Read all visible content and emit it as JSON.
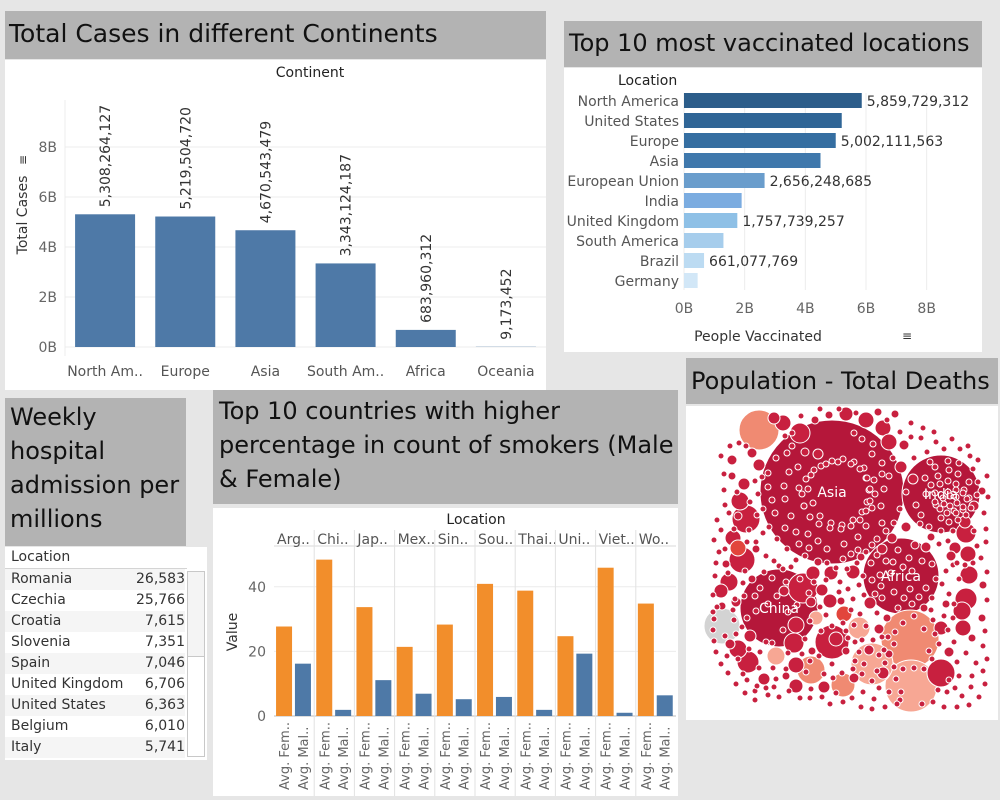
{
  "titles": {
    "cases": "Total Cases in different Continents",
    "vacc": "Top 10 most vaccinated locations",
    "deaths": "Population - Total Deaths",
    "hosp": [
      "Weekly",
      "hospital",
      "admission per",
      "millions"
    ],
    "smokers": [
      "Top 10 countries with higher",
      "percentage in count of smokers (Male",
      "& Female)"
    ]
  },
  "colors": {
    "bar_blue": "#4e79a7",
    "bar_orange": "#f28e2b",
    "title_bg": "#b3b3b3",
    "vacc_scale": [
      "#2c5d8a",
      "#2f6596",
      "#356ea1",
      "#3f78ac",
      "#6a9dcc",
      "#7bace0",
      "#8ec0e6",
      "#a6cdec",
      "#bcdbf2",
      "#d2e7f7"
    ]
  },
  "chart_data": [
    {
      "type": "bar",
      "title": "Total Cases in different Continents",
      "header": "Continent",
      "ylabel": "Total Cases",
      "categories": [
        "North Am..",
        "Europe",
        "Asia",
        "South Am..",
        "Africa",
        "Oceania"
      ],
      "values": [
        5308264127,
        5219504720,
        4670543479,
        3343124187,
        683960312,
        9173452
      ],
      "value_labels": [
        "5,308,264,127",
        "5,219,504,720",
        "4,670,543,479",
        "3,343,124,187",
        "683,960,312",
        "9,173,452"
      ],
      "yticks": [
        "0B",
        "2B",
        "4B",
        "6B",
        "8B"
      ],
      "ylim": [
        0,
        9000000000
      ],
      "grid": true
    },
    {
      "type": "bar",
      "orientation": "horizontal",
      "title": "Top 10 most vaccinated locations",
      "header": "Location",
      "xlabel": "People Vaccinated",
      "categories": [
        "North America",
        "United States",
        "Europe",
        "Asia",
        "European Union",
        "India",
        "United Kingdom",
        "South America",
        "Brazil",
        "Germany"
      ],
      "values": [
        5859729312,
        5200000000,
        5002111563,
        4500000000,
        2656248685,
        1900000000,
        1757739257,
        1300000000,
        661077769,
        450000000
      ],
      "value_labels": [
        "5,859,729,312",
        "",
        "5,002,111,563",
        "",
        "2,656,248,685",
        "",
        "1,757,739,257",
        "",
        "661,077,769",
        ""
      ],
      "xticks": [
        "0B",
        "2B",
        "4B",
        "6B",
        "8B"
      ],
      "xlim": [
        0,
        9000000000
      ],
      "grid": true
    },
    {
      "type": "table",
      "title": "Weekly hospital admission per millions",
      "header": "Location",
      "rows": [
        {
          "location": "Romania",
          "value": "26,583"
        },
        {
          "location": "Czechia",
          "value": "25,766"
        },
        {
          "location": "Croatia",
          "value": "7,615"
        },
        {
          "location": "Slovenia",
          "value": "7,351"
        },
        {
          "location": "Spain",
          "value": "7,046"
        },
        {
          "location": "United Kingdom",
          "value": "6,706"
        },
        {
          "location": "United States",
          "value": "6,363"
        },
        {
          "location": "Belgium",
          "value": "6,010"
        },
        {
          "location": "Italy",
          "value": "5,741"
        }
      ]
    },
    {
      "type": "bar",
      "title": "Top 10 countries with higher percentage in count of smokers (Male & Female)",
      "header": "Location",
      "ylabel": "Value",
      "categories": [
        "Arg..",
        "Chi..",
        "Jap..",
        "Mex..",
        "Sin..",
        "Sou..",
        "Thai..",
        "Uni..",
        "Viet..",
        "Wo.."
      ],
      "measures": [
        "Avg. Fem..",
        "Avg. Mal.."
      ],
      "series": [
        {
          "name": "Avg. Fem..",
          "values": [
            null,
            1.9,
            null,
            null,
            null,
            null,
            1.9,
            null,
            1.0,
            null
          ]
        },
        {
          "name": "Avg. Mal..",
          "values": [
            null,
            48.4,
            null,
            null,
            null,
            null,
            38.8,
            null,
            45.9,
            null
          ]
        }
      ],
      "values_by_category": [
        [
          27.7,
          16.2
        ],
        [
          48.4,
          1.9
        ],
        [
          33.7,
          11.1
        ],
        [
          21.4,
          6.9
        ],
        [
          28.3,
          5.2
        ],
        [
          40.9,
          5.9
        ],
        [
          38.8,
          1.9
        ],
        [
          24.7,
          19.3
        ],
        [
          45.9,
          1.0
        ],
        [
          34.8,
          6.4
        ]
      ],
      "yticks": [
        "0",
        "20",
        "40"
      ],
      "ylim": [
        0,
        52
      ],
      "grid": true
    },
    {
      "type": "bubble",
      "title": "Population - Total Deaths",
      "labels": [
        "Asia",
        "India",
        "Africa",
        "China"
      ]
    }
  ]
}
